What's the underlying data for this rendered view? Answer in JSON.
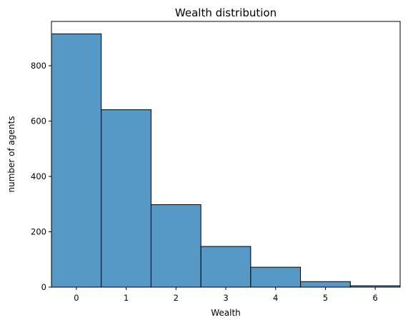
{
  "chart_data": {
    "type": "bar",
    "title": "Wealth distribution",
    "xlabel": "Wealth",
    "ylabel": "number of agents",
    "categories": [
      "0",
      "1",
      "2",
      "3",
      "4",
      "5",
      "6"
    ],
    "x": [
      0,
      1,
      2,
      3,
      4,
      5,
      6
    ],
    "values": [
      915,
      641,
      298,
      147,
      72,
      20,
      5
    ],
    "xlim": [
      -0.5,
      6.5
    ],
    "ylim": [
      0,
      960
    ],
    "yticks": [
      0,
      200,
      400,
      600,
      800
    ],
    "xticks": [
      0,
      1,
      2,
      3,
      4,
      5,
      6
    ],
    "grid": false,
    "bar_color": "#5799c6",
    "edge_color": "#000000"
  }
}
